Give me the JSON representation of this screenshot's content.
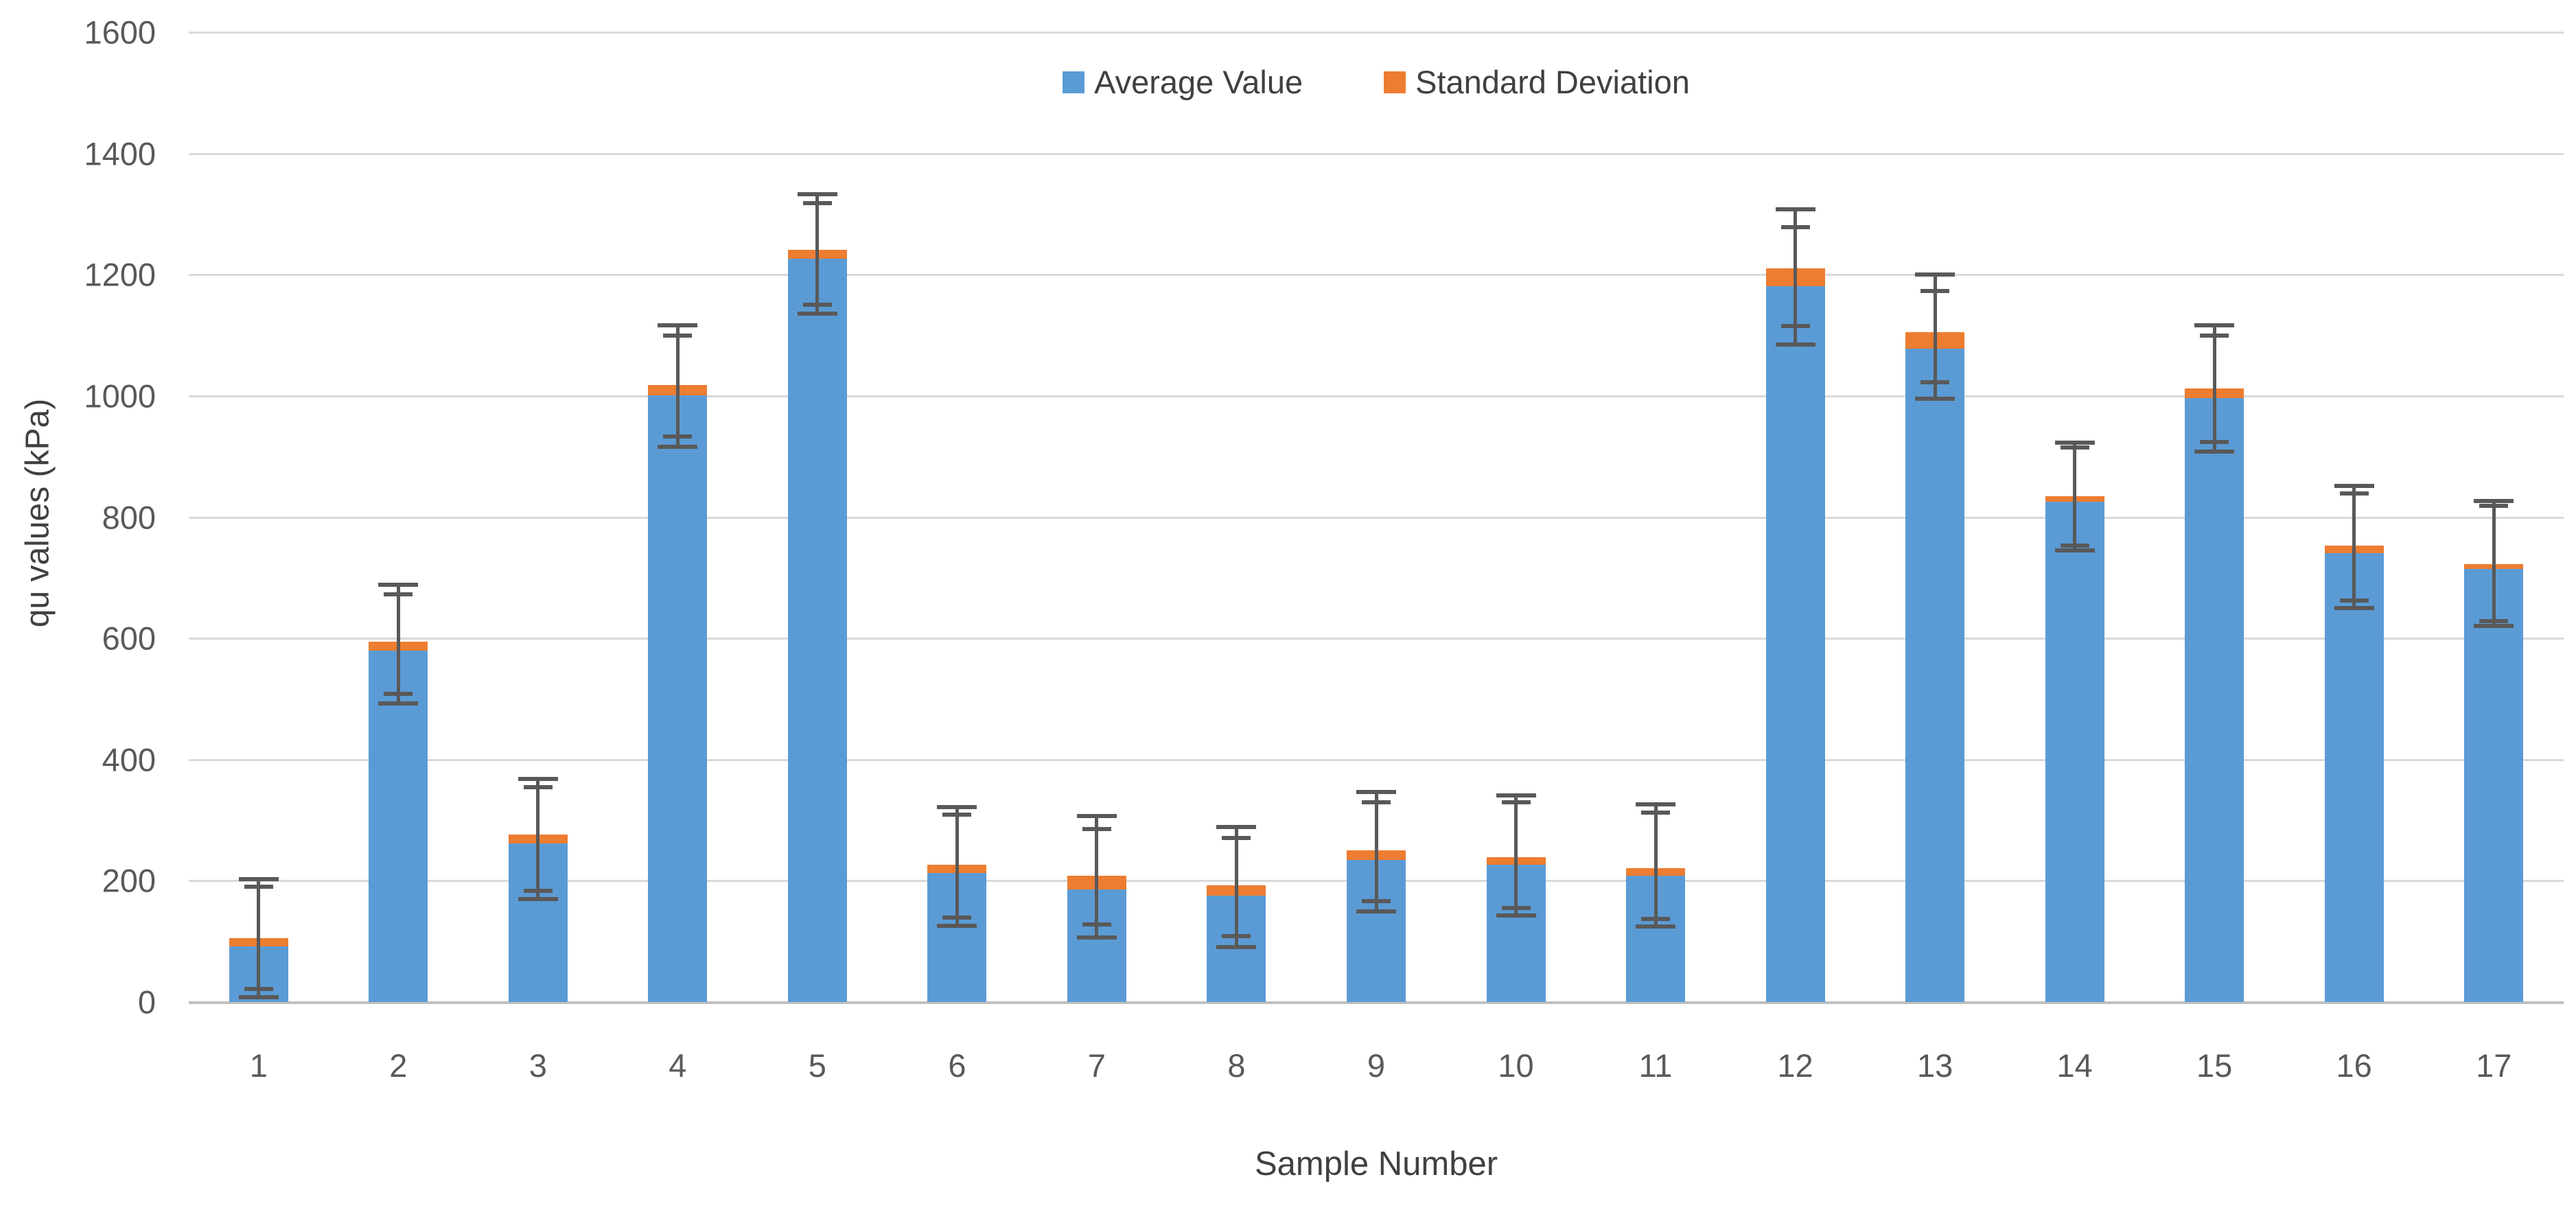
{
  "chart_data": {
    "type": "bar",
    "stacked": true,
    "categories": [
      "1",
      "2",
      "3",
      "4",
      "5",
      "6",
      "7",
      "8",
      "9",
      "10",
      "11",
      "12",
      "13",
      "14",
      "15",
      "16",
      "17"
    ],
    "series": [
      {
        "name": "Average Value",
        "color": "#5b9bd5",
        "values": [
          92,
          580,
          262,
          1001,
          1226,
          213,
          186,
          175,
          234,
          227,
          208,
          1181,
          1078,
          826,
          996,
          741,
          714
        ]
      },
      {
        "name": "Standard Deviation",
        "color": "#ed7d31",
        "values": [
          13,
          15,
          14,
          17,
          15,
          13,
          22,
          18,
          16,
          12,
          13,
          30,
          27,
          8,
          16,
          12,
          8
        ]
      }
    ],
    "error_bars": {
      "color": "#595959",
      "low": [
        8,
        493,
        170,
        916,
        1136,
        126,
        106,
        91,
        150,
        143,
        124,
        1085,
        995,
        745,
        908,
        650,
        620
      ],
      "high": [
        203,
        688,
        368,
        1116,
        1333,
        322,
        307,
        289,
        346,
        341,
        326,
        1308,
        1200,
        923,
        1116,
        851,
        827
      ]
    },
    "xlabel": "Sample Number",
    "ylabel": "qu values (kPa)",
    "ylim": [
      0,
      1600
    ],
    "ytick_step": 200,
    "yticks": [
      0,
      200,
      400,
      600,
      800,
      1000,
      1200,
      1400,
      1600
    ],
    "grid": true,
    "legend_position": "top-center",
    "grid_color": "#d9d9d9",
    "axis_line_color": "#c0c0c0",
    "tick_label_color": "#595959",
    "axis_title_color": "#404040"
  }
}
